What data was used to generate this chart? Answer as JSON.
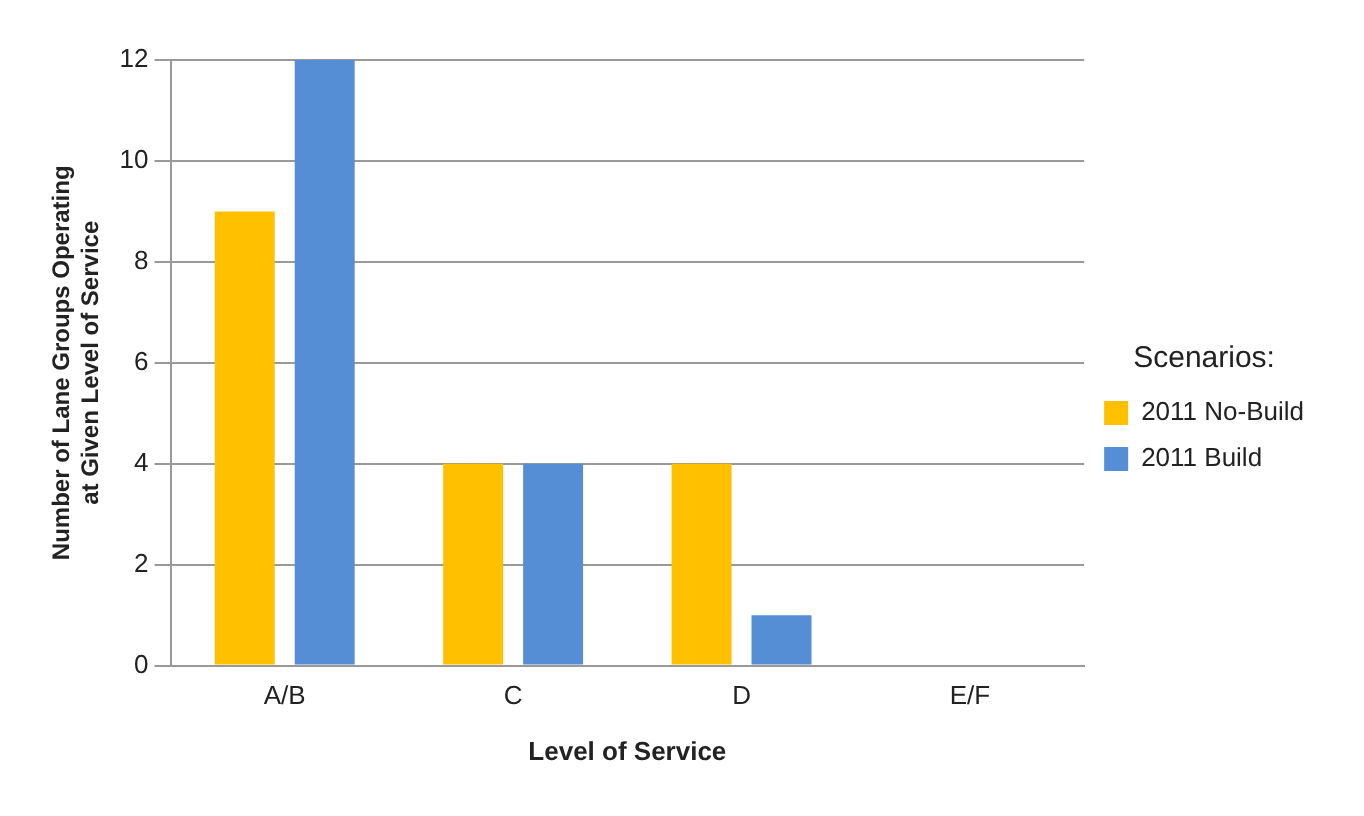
{
  "chart_data": {
    "type": "bar",
    "xlabel": "Level of Service",
    "ylabel": "Number of Lane Groups Operating at Given Level of Service",
    "legend_title": "Scenarios:",
    "categories": [
      "A/B",
      "C",
      "D",
      "E/F"
    ],
    "series": [
      {
        "name": "2011 No-Build",
        "color": "#ffc000",
        "values": [
          9,
          4,
          4,
          0
        ]
      },
      {
        "name": "2011 Build",
        "color": "#558ed5",
        "values": [
          12,
          4,
          1,
          0
        ]
      }
    ],
    "ylim": [
      0,
      12
    ],
    "yticks": [
      0,
      2,
      4,
      6,
      8,
      10,
      12
    ],
    "grid": "y",
    "legend": "right"
  }
}
